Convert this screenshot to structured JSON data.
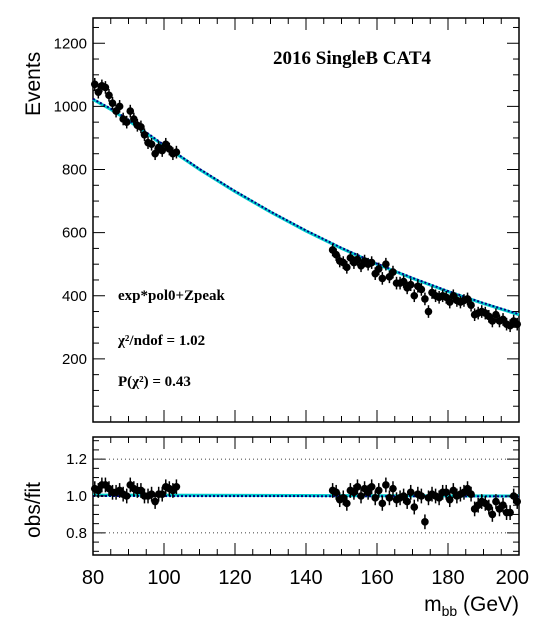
{
  "chart_data": [
    {
      "type": "scatter",
      "title": "2016 SingleB CAT4",
      "ylabel": "Events",
      "xlabel": "",
      "xlim": [
        80,
        200
      ],
      "ylim": [
        0,
        1280
      ],
      "yticks": [
        "200",
        "400",
        "600",
        "800",
        "1000",
        "1200"
      ],
      "annotations": [
        "exp*pol0+Zpeak",
        "χ²/ndof = 1.02",
        "P(χ²) = 0.43"
      ],
      "fit_lines": [
        {
          "color": "#00cccc",
          "style": "solid",
          "x": [
            80,
            85,
            90,
            95,
            100,
            105,
            110,
            120,
            130,
            140,
            150,
            160,
            170,
            180,
            190,
            200
          ],
          "y": [
            1022,
            990,
            955,
            915,
            875,
            838,
            800,
            730,
            665,
            605,
            550,
            500,
            455,
            413,
            375,
            340
          ]
        },
        {
          "color": "#000080",
          "style": "dotted",
          "x": [
            80,
            85,
            90,
            95,
            100,
            105,
            110,
            120,
            130,
            140,
            150,
            160,
            170,
            180,
            190,
            200
          ],
          "y": [
            1024,
            993,
            958,
            918,
            878,
            840,
            802,
            732,
            667,
            607,
            552,
            502,
            457,
            415,
            377,
            342
          ]
        }
      ],
      "points": {
        "color": "#000000",
        "x": [
          80.5,
          81.5,
          82.5,
          83.5,
          84.5,
          85.5,
          86.5,
          87.5,
          88.5,
          89.5,
          90.5,
          91.5,
          92.5,
          93.5,
          94.5,
          95.5,
          96.5,
          97.5,
          98.5,
          99.5,
          100.5,
          101.5,
          102.5,
          103.5,
          147.5,
          148.5,
          149.5,
          150.5,
          151.5,
          152.5,
          153.5,
          154.5,
          155.5,
          156.5,
          157.5,
          158.5,
          159.5,
          160.5,
          161.5,
          162.5,
          163.5,
          164.5,
          165.5,
          166.5,
          167.5,
          168.5,
          169.5,
          170.5,
          171.5,
          172.5,
          173.5,
          174.5,
          175.5,
          176.5,
          177.5,
          178.5,
          179.5,
          180.5,
          181.5,
          182.5,
          183.5,
          184.5,
          185.5,
          186.5,
          187.5,
          188.5,
          189.5,
          190.5,
          191.5,
          192.5,
          193.5,
          194.5,
          195.5,
          196.5,
          197.5,
          198.5,
          199.5
        ],
        "y": [
          1070,
          1045,
          1065,
          1060,
          1035,
          1010,
          985,
          1000,
          960,
          950,
          985,
          960,
          940,
          935,
          910,
          885,
          880,
          850,
          870,
          860,
          880,
          865,
          850,
          855,
          545,
          530,
          510,
          505,
          490,
          520,
          505,
          515,
          495,
          510,
          500,
          505,
          470,
          485,
          455,
          500,
          460,
          475,
          440,
          440,
          445,
          425,
          435,
          400,
          430,
          420,
          390,
          350,
          410,
          400,
          395,
          400,
          395,
          380,
          400,
          385,
          380,
          385,
          390,
          370,
          340,
          345,
          350,
          345,
          335,
          320,
          340,
          320,
          325,
          310,
          305,
          320,
          310
        ],
        "yerr": 20
      }
    },
    {
      "type": "scatter",
      "ylabel": "obs/fit",
      "xlabel": "m_bb (GeV)",
      "xlabel_main": "m",
      "xlabel_sub": "bb",
      "xlabel_unit": " (GeV)",
      "xlim": [
        80,
        200
      ],
      "ylim": [
        0.68,
        1.32
      ],
      "yticks": [
        "0.8",
        "1.0",
        "1.2"
      ],
      "xticks": [
        "80",
        "100",
        "120",
        "140",
        "160",
        "180",
        "200"
      ],
      "reference_lines": [
        0.8,
        1.0,
        1.2
      ],
      "ratio_points": {
        "x": [
          80.5,
          81.5,
          82.5,
          83.5,
          84.5,
          85.5,
          86.5,
          87.5,
          88.5,
          89.5,
          90.5,
          91.5,
          92.5,
          93.5,
          94.5,
          95.5,
          96.5,
          97.5,
          98.5,
          99.5,
          100.5,
          101.5,
          102.5,
          103.5,
          147.5,
          148.5,
          149.5,
          150.5,
          151.5,
          152.5,
          153.5,
          154.5,
          155.5,
          156.5,
          157.5,
          158.5,
          159.5,
          160.5,
          161.5,
          162.5,
          163.5,
          164.5,
          165.5,
          166.5,
          167.5,
          168.5,
          169.5,
          170.5,
          171.5,
          172.5,
          173.5,
          174.5,
          175.5,
          176.5,
          177.5,
          178.5,
          179.5,
          180.5,
          181.5,
          182.5,
          183.5,
          184.5,
          185.5,
          186.5,
          187.5,
          188.5,
          189.5,
          190.5,
          191.5,
          192.5,
          193.5,
          194.5,
          195.5,
          196.5,
          197.5,
          198.5,
          199.5
        ],
        "y": [
          1.04,
          1.03,
          1.06,
          1.06,
          1.04,
          1.02,
          1.02,
          1.03,
          1.01,
          1.0,
          1.06,
          1.04,
          1.03,
          1.03,
          1.0,
          1.0,
          1.01,
          0.97,
          1.01,
          1.01,
          1.05,
          1.04,
          1.03,
          1.05,
          1.03,
          1.02,
          0.98,
          0.99,
          0.96,
          1.03,
          1.02,
          1.05,
          1.0,
          1.04,
          1.02,
          1.05,
          0.99,
          1.03,
          0.96,
          1.06,
          0.99,
          1.04,
          0.98,
          0.99,
          1.0,
          0.97,
          1.02,
          0.94,
          1.01,
          1.0,
          0.86,
          0.99,
          1.01,
          1.0,
          0.99,
          1.02,
          1.02,
          0.98,
          1.03,
          1.0,
          1.01,
          1.02,
          1.04,
          1.01,
          0.93,
          0.95,
          0.97,
          0.96,
          0.94,
          0.9,
          0.97,
          0.93,
          0.95,
          0.91,
          0.91,
          1.0,
          0.97
        ],
        "yerr": 0.04
      },
      "ratio_lines": [
        {
          "color": "#00cccc",
          "style": "solid",
          "x": [
            80,
            200
          ],
          "y": [
            1.005,
            1.0
          ]
        },
        {
          "color": "#000080",
          "style": "dotted",
          "x": [
            80,
            200
          ],
          "y": [
            1.0,
            0.998
          ]
        }
      ]
    }
  ]
}
